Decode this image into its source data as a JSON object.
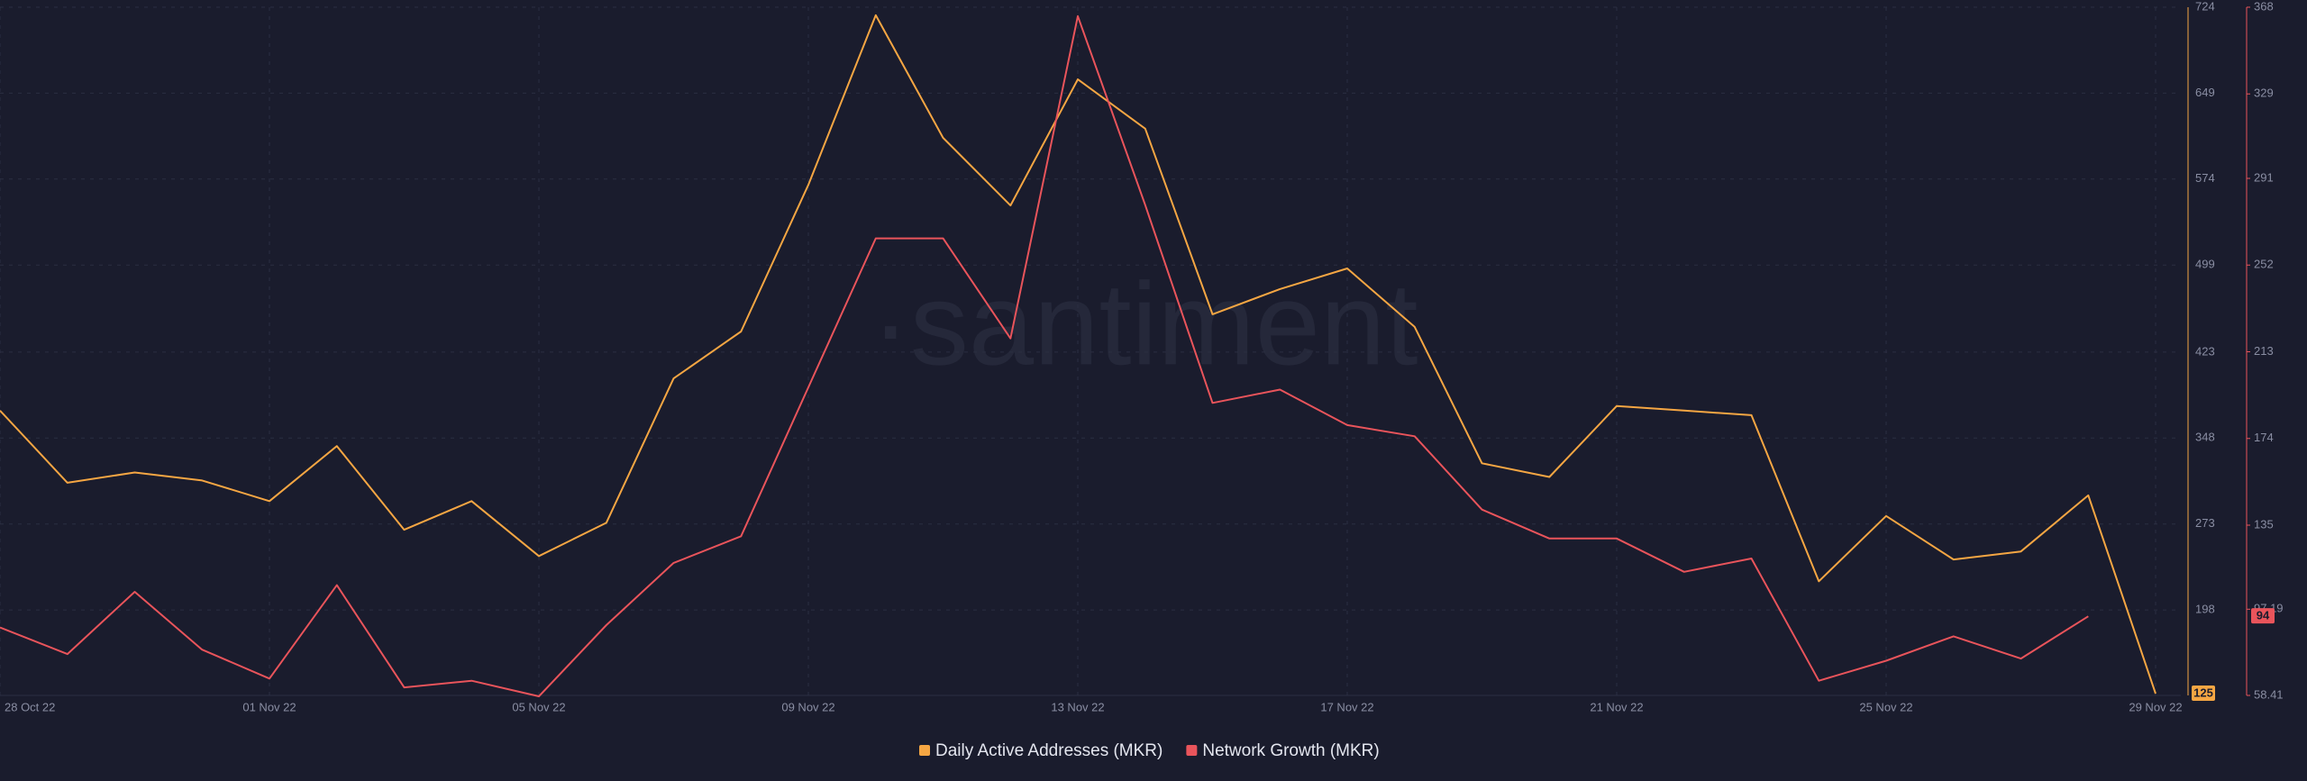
{
  "chart_data": {
    "type": "line",
    "watermark": "·santiment",
    "categories": [
      "28 Oct 22",
      null,
      null,
      null,
      "01 Nov 22",
      null,
      null,
      null,
      "05 Nov 22",
      null,
      null,
      null,
      "09 Nov 22",
      null,
      null,
      null,
      "13 Nov 22",
      null,
      null,
      null,
      "17 Nov 22",
      null,
      null,
      null,
      "21 Nov 22",
      null,
      null,
      null,
      "25 Nov 22",
      null,
      null,
      null,
      "29 Nov 22"
    ],
    "series": [
      {
        "name": "Daily Active Addresses (MKR)",
        "color": "#f5a643",
        "values": [
          372,
          309,
          318,
          311,
          293,
          341,
          268,
          293,
          245,
          274,
          400,
          441,
          569,
          717,
          610,
          551,
          661,
          618,
          456,
          478,
          496,
          445,
          326,
          314,
          376,
          372,
          368,
          223,
          280,
          242,
          249,
          298,
          125
        ]
      },
      {
        "name": "Network Growth (MKR)",
        "color": "#e9545b",
        "axis": "y2",
        "values": [
          89,
          77,
          105,
          79,
          66,
          108,
          62,
          65,
          58,
          90,
          118,
          130,
          197,
          264,
          264,
          219,
          364,
          279,
          190,
          196,
          180,
          175,
          142,
          129,
          129,
          114,
          120,
          65,
          74,
          85,
          75,
          94,
          null
        ]
      }
    ],
    "ylim": [
      123.4,
      724
    ],
    "yticks": [
      198,
      273,
      348,
      423,
      499,
      574,
      649,
      724
    ],
    "y2lim": [
      58.41,
      368
    ],
    "y2ticks": [
      58.41,
      97.19,
      135,
      174,
      213,
      252,
      291,
      329,
      368
    ],
    "grid": true
  }
}
